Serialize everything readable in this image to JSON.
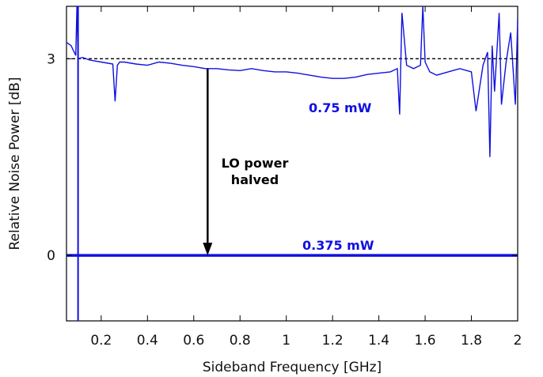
{
  "chart_data": {
    "type": "line",
    "title": "",
    "xlabel": "Sideband Frequency [GHz]",
    "ylabel": "Relative Noise Power [dB]",
    "xlim": [
      0.05,
      2.0
    ],
    "ylim": [
      -1.0,
      3.8
    ],
    "x_ticks": [
      0.2,
      0.4,
      0.6,
      0.8,
      1.0,
      1.2,
      1.4,
      1.6,
      1.8,
      2.0
    ],
    "x_tick_labels": [
      "0.2",
      "0.4",
      "0.6",
      "0.8",
      "1",
      "1.2",
      "1.4",
      "1.6",
      "1.8",
      "2"
    ],
    "y_ticks": [
      0,
      3
    ],
    "y_tick_labels": [
      "0",
      "3"
    ],
    "reference_line": {
      "y": 3.0,
      "style": "dashed",
      "color": "#000000"
    },
    "series": [
      {
        "name": "0.75 mW",
        "color": "#1010e0",
        "x": [
          0.05,
          0.07,
          0.09,
          0.095,
          0.1,
          0.12,
          0.15,
          0.2,
          0.25,
          0.26,
          0.27,
          0.28,
          0.3,
          0.35,
          0.4,
          0.45,
          0.5,
          0.55,
          0.6,
          0.65,
          0.7,
          0.75,
          0.8,
          0.85,
          0.9,
          0.95,
          1.0,
          1.05,
          1.1,
          1.15,
          1.2,
          1.25,
          1.3,
          1.35,
          1.4,
          1.45,
          1.48,
          1.49,
          1.5,
          1.52,
          1.55,
          1.58,
          1.59,
          1.6,
          1.62,
          1.65,
          1.7,
          1.75,
          1.8,
          1.82,
          1.85,
          1.87,
          1.88,
          1.89,
          1.9,
          1.92,
          1.93,
          1.95,
          1.97,
          1.99,
          2.0
        ],
        "values": [
          3.25,
          3.2,
          3.05,
          4.2,
          3.0,
          3.02,
          2.98,
          2.95,
          2.92,
          2.35,
          2.9,
          2.95,
          2.95,
          2.92,
          2.9,
          2.95,
          2.93,
          2.9,
          2.88,
          2.85,
          2.85,
          2.83,
          2.82,
          2.85,
          2.82,
          2.8,
          2.8,
          2.78,
          2.75,
          2.72,
          2.7,
          2.7,
          2.72,
          2.76,
          2.78,
          2.8,
          2.85,
          2.15,
          3.7,
          2.9,
          2.85,
          2.9,
          4.5,
          2.95,
          2.8,
          2.75,
          2.8,
          2.85,
          2.8,
          2.2,
          2.9,
          3.1,
          1.5,
          3.2,
          2.5,
          3.7,
          2.3,
          2.95,
          3.4,
          2.3,
          3.6
        ]
      },
      {
        "name": "0.375 mW",
        "color": "#1010e0",
        "x": [
          0.05,
          2.0
        ],
        "values": [
          0.0,
          0.0
        ]
      }
    ],
    "vertical_spike": {
      "x": 0.1,
      "y_range": [
        -1.0,
        3.8
      ],
      "color": "#1010e0"
    },
    "annotation": {
      "text_line1": "LO power",
      "text_line2": "halved",
      "arrow_x": 0.66,
      "arrow_from_y": 2.85,
      "arrow_to_y": 0.0
    },
    "grid": false,
    "legend": "none"
  }
}
